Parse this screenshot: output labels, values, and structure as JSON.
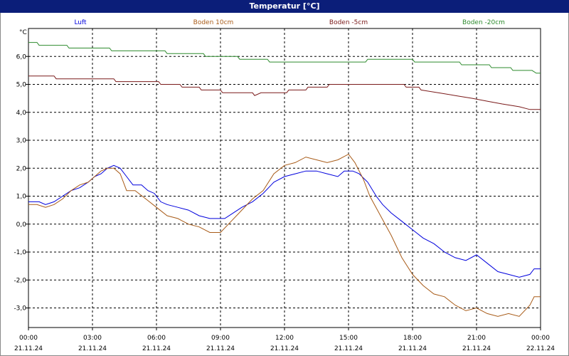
{
  "window": {
    "title": "Temperatur [°C]"
  },
  "chart_data": {
    "type": "line",
    "title": "Temperatur [°C]",
    "xlabel": "",
    "ylabel": "°C",
    "xlim": [
      0,
      24
    ],
    "ylim": [
      -3.7,
      7.0
    ],
    "grid": true,
    "legend": "top",
    "y_ticks": [
      -3.0,
      -2.0,
      -1.0,
      0.0,
      1.0,
      2.0,
      3.0,
      4.0,
      5.0,
      6.0
    ],
    "y_tick_labels": [
      "-3,0",
      "-2,0",
      "-1,0",
      "0,0",
      "1,0",
      "2,0",
      "3,0",
      "4,0",
      "5,0",
      "6,0"
    ],
    "x_ticks": [
      0,
      3,
      6,
      9,
      12,
      15,
      18,
      21,
      24
    ],
    "x_tick_labels": [
      [
        "00:00",
        "21.11.24"
      ],
      [
        "03:00",
        "21.11.24"
      ],
      [
        "06:00",
        "21.11.24"
      ],
      [
        "09:00",
        "21.11.24"
      ],
      [
        "12:00",
        "21.11.24"
      ],
      [
        "15:00",
        "21.11.24"
      ],
      [
        "18:00",
        "21.11.24"
      ],
      [
        "21:00",
        "21.11.24"
      ],
      [
        "00:00",
        "22.11.24"
      ]
    ],
    "series": [
      {
        "name": "Luft",
        "color": "#0000dd",
        "points": [
          [
            0.0,
            0.8
          ],
          [
            0.5,
            0.8
          ],
          [
            0.8,
            0.7
          ],
          [
            1.2,
            0.8
          ],
          [
            1.6,
            1.0
          ],
          [
            2.0,
            1.2
          ],
          [
            2.4,
            1.3
          ],
          [
            2.8,
            1.5
          ],
          [
            3.1,
            1.7
          ],
          [
            3.4,
            1.8
          ],
          [
            3.7,
            2.0
          ],
          [
            4.0,
            2.1
          ],
          [
            4.3,
            2.0
          ],
          [
            4.6,
            1.7
          ],
          [
            4.9,
            1.4
          ],
          [
            5.3,
            1.4
          ],
          [
            5.6,
            1.2
          ],
          [
            5.9,
            1.1
          ],
          [
            6.2,
            0.8
          ],
          [
            6.5,
            0.7
          ],
          [
            7.0,
            0.6
          ],
          [
            7.5,
            0.5
          ],
          [
            8.0,
            0.3
          ],
          [
            8.5,
            0.2
          ],
          [
            9.2,
            0.2
          ],
          [
            9.6,
            0.4
          ],
          [
            10.0,
            0.6
          ],
          [
            10.5,
            0.8
          ],
          [
            11.0,
            1.1
          ],
          [
            11.5,
            1.5
          ],
          [
            12.0,
            1.7
          ],
          [
            12.5,
            1.8
          ],
          [
            13.0,
            1.9
          ],
          [
            13.5,
            1.9
          ],
          [
            14.0,
            1.8
          ],
          [
            14.5,
            1.7
          ],
          [
            14.8,
            1.9
          ],
          [
            15.2,
            1.9
          ],
          [
            15.5,
            1.8
          ],
          [
            15.9,
            1.5
          ],
          [
            16.3,
            1.0
          ],
          [
            16.6,
            0.7
          ],
          [
            17.0,
            0.4
          ],
          [
            17.5,
            0.1
          ],
          [
            18.0,
            -0.2
          ],
          [
            18.5,
            -0.5
          ],
          [
            19.0,
            -0.7
          ],
          [
            19.5,
            -1.0
          ],
          [
            20.0,
            -1.2
          ],
          [
            20.5,
            -1.3
          ],
          [
            21.0,
            -1.1
          ],
          [
            21.5,
            -1.4
          ],
          [
            22.0,
            -1.7
          ],
          [
            22.5,
            -1.8
          ],
          [
            23.0,
            -1.9
          ],
          [
            23.5,
            -1.8
          ],
          [
            23.7,
            -1.6
          ],
          [
            24.0,
            -1.6
          ]
        ]
      },
      {
        "name": "Boden 10cm",
        "color": "#a85b18",
        "points": [
          [
            0.0,
            0.7
          ],
          [
            0.4,
            0.7
          ],
          [
            0.8,
            0.6
          ],
          [
            1.2,
            0.7
          ],
          [
            1.6,
            0.9
          ],
          [
            2.0,
            1.2
          ],
          [
            2.4,
            1.4
          ],
          [
            2.8,
            1.5
          ],
          [
            3.1,
            1.7
          ],
          [
            3.4,
            1.9
          ],
          [
            3.7,
            2.0
          ],
          [
            4.0,
            2.0
          ],
          [
            4.3,
            1.8
          ],
          [
            4.6,
            1.2
          ],
          [
            5.0,
            1.2
          ],
          [
            5.5,
            0.9
          ],
          [
            6.0,
            0.6
          ],
          [
            6.5,
            0.3
          ],
          [
            7.0,
            0.2
          ],
          [
            7.5,
            0.0
          ],
          [
            8.0,
            -0.1
          ],
          [
            8.5,
            -0.3
          ],
          [
            9.0,
            -0.3
          ],
          [
            9.5,
            0.1
          ],
          [
            10.0,
            0.5
          ],
          [
            10.5,
            0.9
          ],
          [
            11.0,
            1.2
          ],
          [
            11.5,
            1.8
          ],
          [
            12.0,
            2.1
          ],
          [
            12.5,
            2.2
          ],
          [
            13.0,
            2.4
          ],
          [
            13.5,
            2.3
          ],
          [
            14.0,
            2.2
          ],
          [
            14.5,
            2.3
          ],
          [
            15.0,
            2.5
          ],
          [
            15.3,
            2.2
          ],
          [
            15.7,
            1.6
          ],
          [
            16.0,
            1.0
          ],
          [
            16.5,
            0.3
          ],
          [
            17.0,
            -0.4
          ],
          [
            17.5,
            -1.2
          ],
          [
            18.0,
            -1.8
          ],
          [
            18.5,
            -2.2
          ],
          [
            19.0,
            -2.5
          ],
          [
            19.5,
            -2.6
          ],
          [
            20.0,
            -2.9
          ],
          [
            20.5,
            -3.1
          ],
          [
            21.0,
            -3.0
          ],
          [
            21.5,
            -3.2
          ],
          [
            22.0,
            -3.3
          ],
          [
            22.5,
            -3.2
          ],
          [
            23.0,
            -3.3
          ],
          [
            23.5,
            -2.9
          ],
          [
            23.7,
            -2.6
          ],
          [
            24.0,
            -2.6
          ]
        ]
      },
      {
        "name": "Boden -5cm",
        "color": "#7a1a1a",
        "points": [
          [
            0.0,
            5.3
          ],
          [
            1.2,
            5.3
          ],
          [
            1.3,
            5.2
          ],
          [
            4.0,
            5.2
          ],
          [
            4.1,
            5.1
          ],
          [
            6.1,
            5.1
          ],
          [
            6.2,
            5.0
          ],
          [
            7.1,
            5.0
          ],
          [
            7.2,
            4.9
          ],
          [
            8.0,
            4.9
          ],
          [
            8.1,
            4.8
          ],
          [
            9.0,
            4.8
          ],
          [
            9.1,
            4.7
          ],
          [
            10.5,
            4.7
          ],
          [
            10.6,
            4.6
          ],
          [
            10.9,
            4.7
          ],
          [
            12.1,
            4.7
          ],
          [
            12.2,
            4.8
          ],
          [
            13.0,
            4.8
          ],
          [
            13.1,
            4.9
          ],
          [
            14.0,
            4.9
          ],
          [
            14.1,
            5.0
          ],
          [
            17.6,
            5.0
          ],
          [
            17.7,
            4.9
          ],
          [
            18.3,
            4.9
          ],
          [
            18.4,
            4.8
          ],
          [
            19.2,
            4.7
          ],
          [
            20.0,
            4.6
          ],
          [
            20.8,
            4.5
          ],
          [
            21.5,
            4.4
          ],
          [
            22.2,
            4.3
          ],
          [
            23.0,
            4.2
          ],
          [
            23.5,
            4.1
          ],
          [
            24.0,
            4.1
          ]
        ]
      },
      {
        "name": "Boden -20cm",
        "color": "#2e8b2e",
        "points": [
          [
            0.0,
            6.5
          ],
          [
            0.4,
            6.5
          ],
          [
            0.5,
            6.4
          ],
          [
            1.8,
            6.4
          ],
          [
            1.9,
            6.3
          ],
          [
            3.8,
            6.3
          ],
          [
            3.9,
            6.2
          ],
          [
            6.4,
            6.2
          ],
          [
            6.5,
            6.1
          ],
          [
            8.2,
            6.1
          ],
          [
            8.3,
            6.0
          ],
          [
            9.8,
            6.0
          ],
          [
            9.9,
            5.9
          ],
          [
            11.2,
            5.9
          ],
          [
            11.3,
            5.8
          ],
          [
            15.8,
            5.8
          ],
          [
            15.9,
            5.9
          ],
          [
            18.0,
            5.9
          ],
          [
            18.1,
            5.8
          ],
          [
            20.2,
            5.8
          ],
          [
            20.3,
            5.7
          ],
          [
            21.6,
            5.7
          ],
          [
            21.7,
            5.6
          ],
          [
            22.6,
            5.6
          ],
          [
            22.7,
            5.5
          ],
          [
            23.6,
            5.5
          ],
          [
            23.8,
            5.4
          ],
          [
            24.0,
            5.4
          ]
        ]
      }
    ]
  }
}
